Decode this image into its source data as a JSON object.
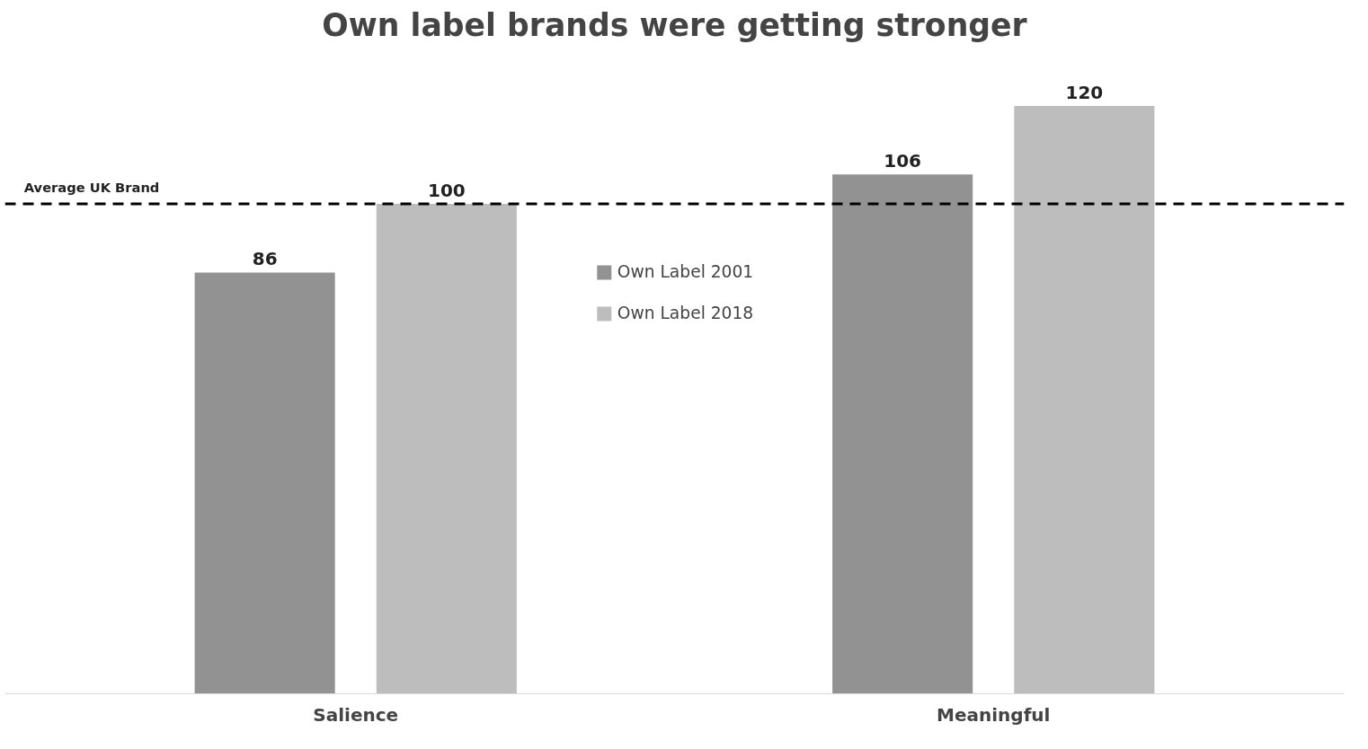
{
  "chart_data": {
    "type": "bar",
    "title": "Own label brands were getting stronger",
    "categories": [
      "Salience",
      "Meaningful"
    ],
    "series": [
      {
        "name": "Own Label 2001",
        "color": "#929292",
        "values": [
          86,
          106
        ]
      },
      {
        "name": "Own Label 2018",
        "color": "#bdbdbd",
        "values": [
          100,
          120
        ]
      }
    ],
    "tick_labels": "x",
    "data_labels": true,
    "legend": "top",
    "grid": false,
    "ref_lines": [
      {
        "axis": "y",
        "value": 100,
        "label": "Average UK Brand",
        "line_style": "dashed",
        "color": "#000000"
      }
    ]
  }
}
